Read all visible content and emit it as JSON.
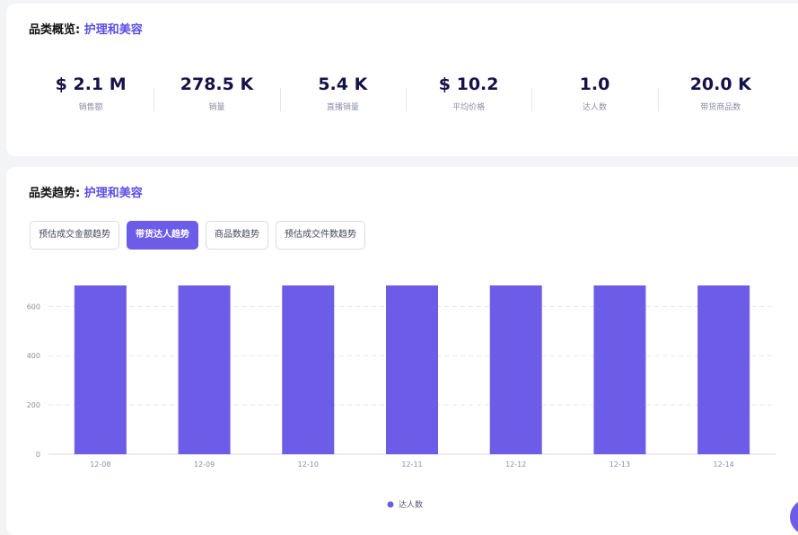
{
  "overview": {
    "title_prefix": "品类概览:",
    "category": "护理和美容",
    "stats": [
      {
        "value": "$ 2.1 M",
        "label": "销售额"
      },
      {
        "value": "278.5 K",
        "label": "销量"
      },
      {
        "value": "5.4 K",
        "label": "直播销量"
      },
      {
        "value": "$ 10.2",
        "label": "平均价格"
      },
      {
        "value": "1.0",
        "label": "达人数"
      },
      {
        "value": "20.0 K",
        "label": "带货商品数"
      }
    ]
  },
  "trend": {
    "title_prefix": "品类趋势:",
    "category": "护理和美容",
    "tabs": [
      {
        "label": "预估成交金额趋势",
        "active": false
      },
      {
        "label": "带货达人趋势",
        "active": true
      },
      {
        "label": "商品数趋势",
        "active": false
      },
      {
        "label": "预估成交件数趋势",
        "active": false
      }
    ]
  },
  "colors": {
    "accent": "#6c5ce7",
    "bar": "#6c5ce7"
  },
  "chart_data": {
    "type": "bar",
    "categories": [
      "12-08",
      "12-09",
      "12-10",
      "12-11",
      "12-12",
      "12-13",
      "12-14"
    ],
    "series": [
      {
        "name": "达人数",
        "values": [
          685,
          685,
          685,
          685,
          685,
          685,
          685
        ]
      }
    ],
    "yticks": [
      0,
      200,
      400,
      600
    ],
    "ylim": [
      0,
      685
    ],
    "grid": true,
    "legend": "bottom-center"
  }
}
